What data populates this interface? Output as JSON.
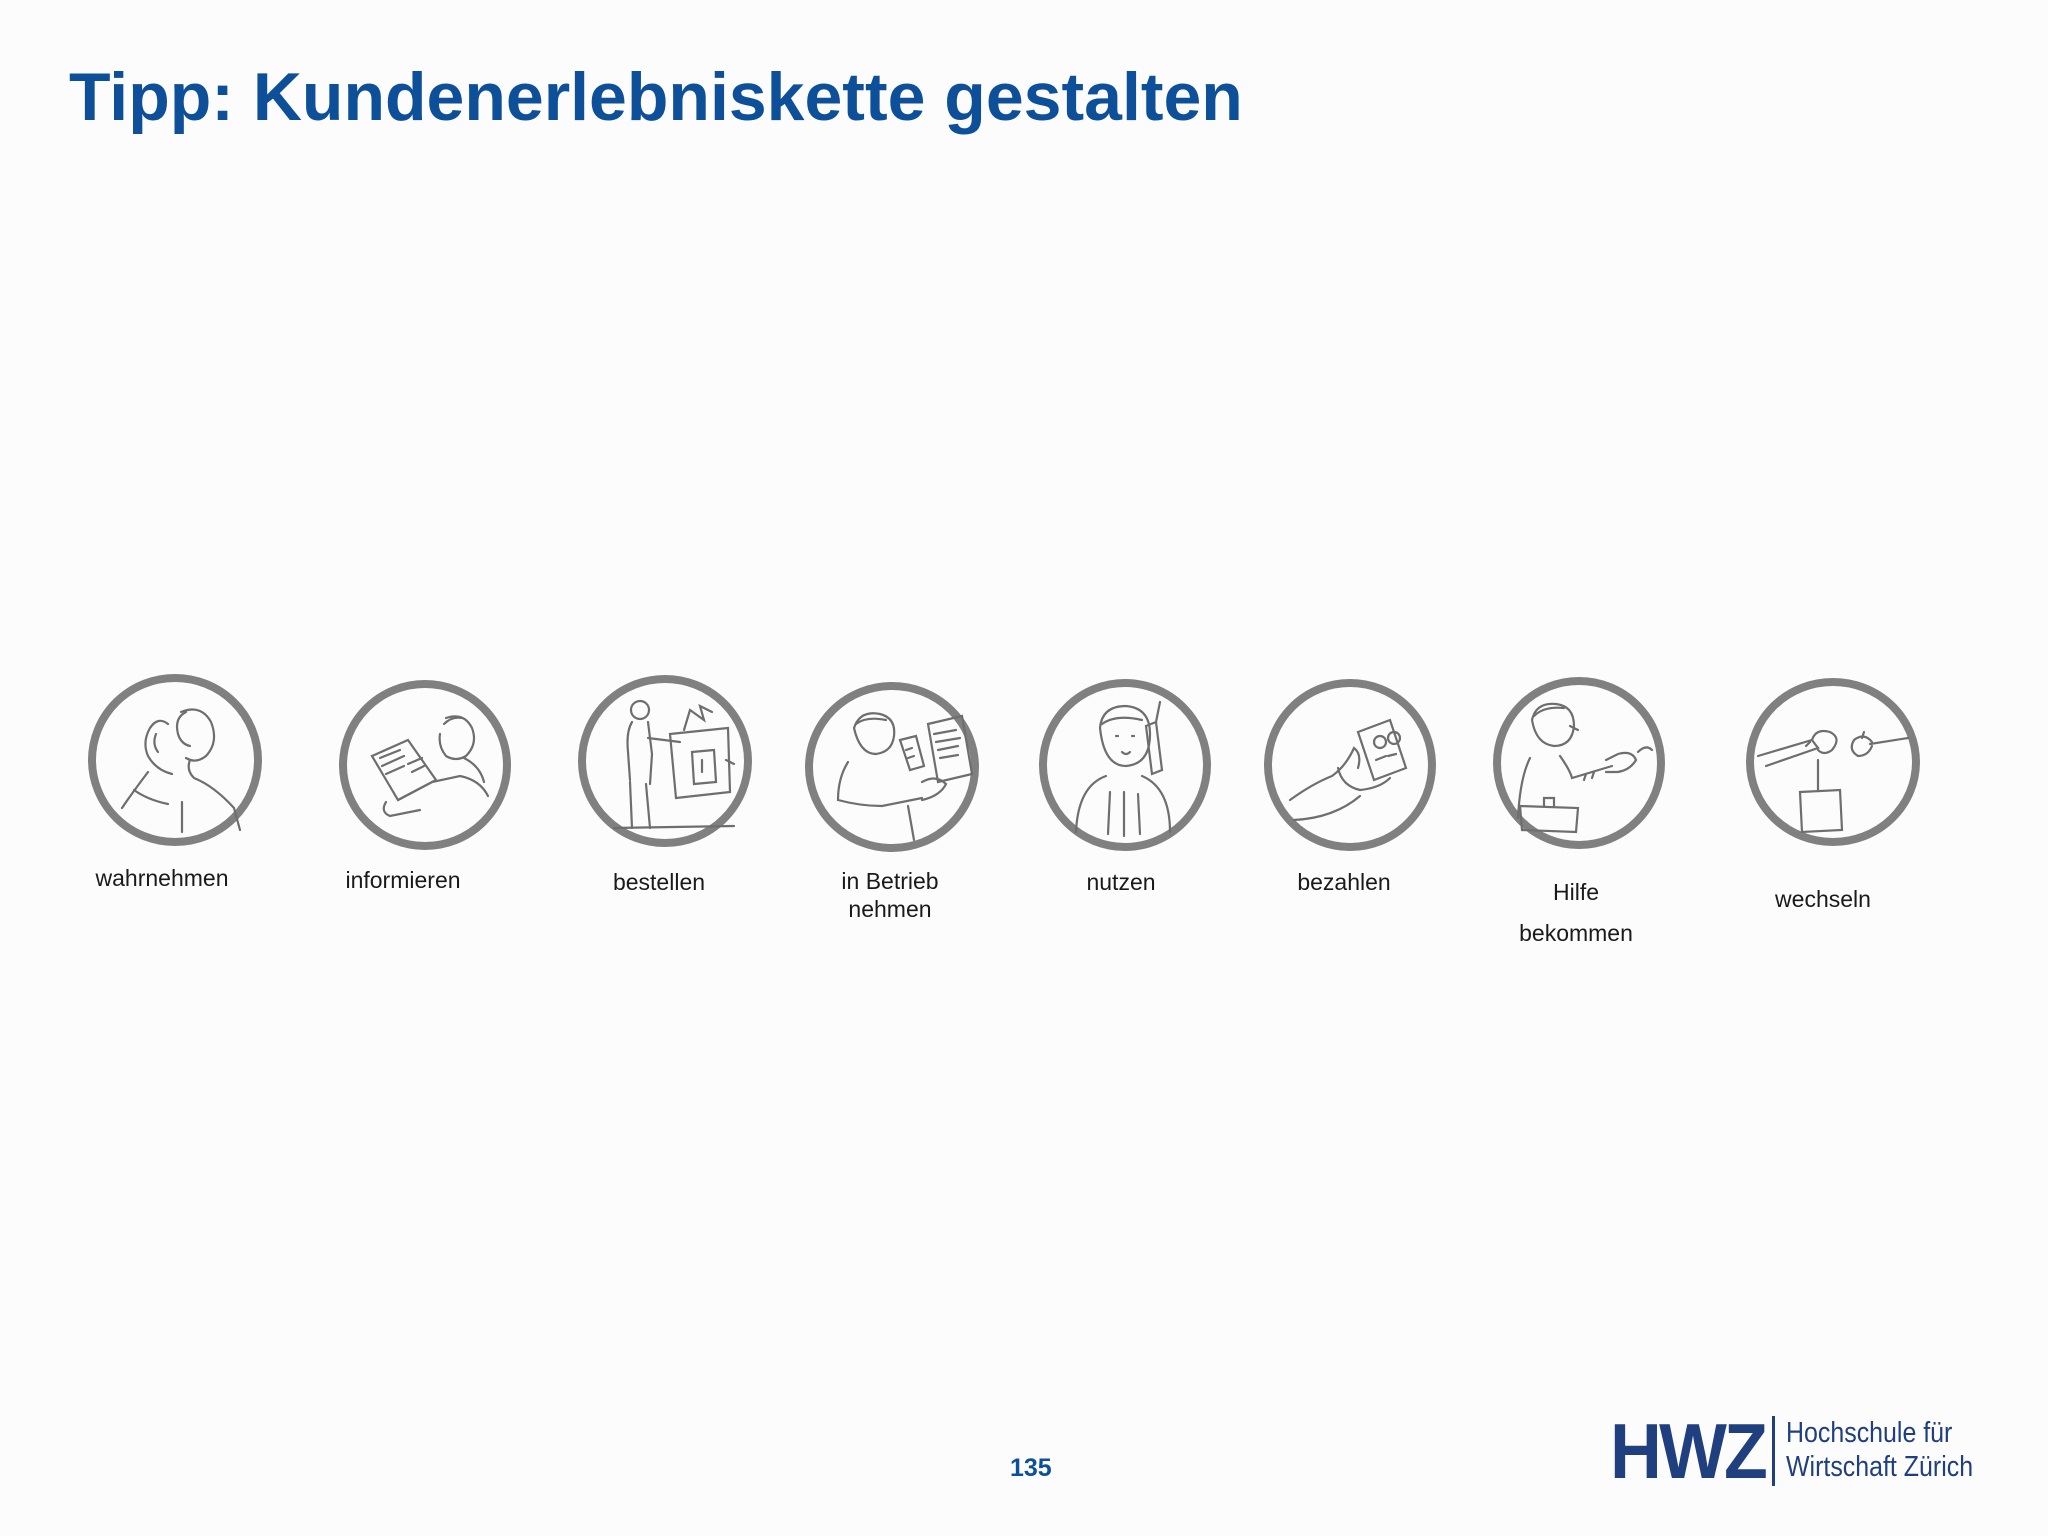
{
  "title": "Tipp: Kundenerlebniskette gestalten",
  "steps": [
    {
      "icon": "listening-person-icon",
      "lines": [
        "wahrnehmen"
      ]
    },
    {
      "icon": "reading-brochure-icon",
      "lines": [
        "informieren"
      ]
    },
    {
      "icon": "ordering-at-counter-icon",
      "lines": [
        "bestellen"
      ]
    },
    {
      "icon": "setup-device-icon",
      "lines": [
        "in Betrieb",
        "nehmen"
      ]
    },
    {
      "icon": "phone-call-icon",
      "lines": [
        "nutzen"
      ]
    },
    {
      "icon": "paying-money-icon",
      "lines": [
        "bezahlen"
      ]
    },
    {
      "icon": "service-technician-icon",
      "lines": [
        "Hilfe",
        "bekommen"
      ]
    },
    {
      "icon": "handover-icon",
      "lines": [
        "wechseln"
      ]
    }
  ],
  "page_number": "135",
  "logo": {
    "acronym": "HWZ",
    "line1": "Hochschule für",
    "line2": "Wirtschaft Zürich",
    "color": "#1f3f7f"
  },
  "title_color": "#0e4f99"
}
